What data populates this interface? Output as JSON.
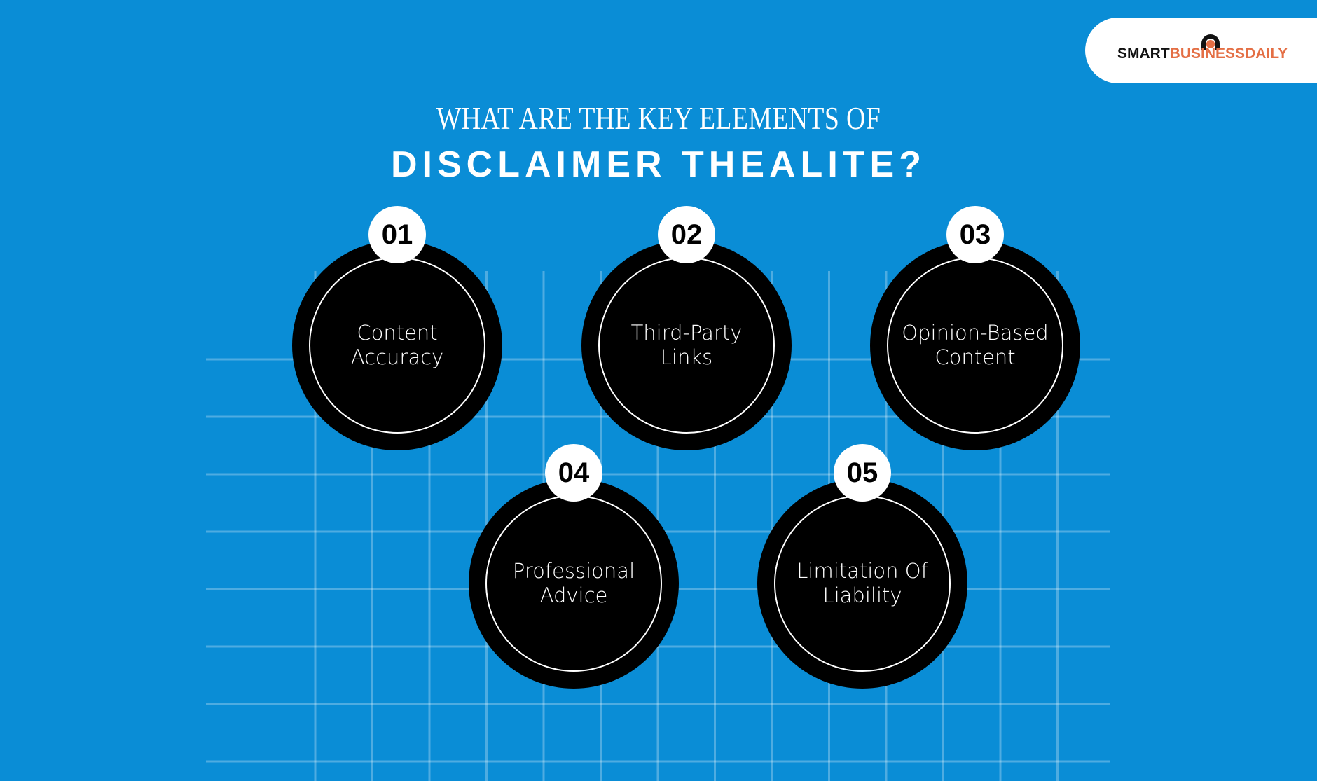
{
  "logo": {
    "part1": "SMART",
    "part2": "BUSINESSDAILY",
    "colors": {
      "dark": "#111111",
      "accent": "#e46f45"
    }
  },
  "title": {
    "line1": "WHAT ARE THE KEY ELEMENTS OF",
    "line2": "DISCLAIMER THEALITE?"
  },
  "background_color": "#0a8dd6",
  "items": [
    {
      "number": "01",
      "label": "Content Accuracy"
    },
    {
      "number": "02",
      "label": "Third-Party Links"
    },
    {
      "number": "03",
      "label": "Opinion-Based Content"
    },
    {
      "number": "04",
      "label": "Professional Advice"
    },
    {
      "number": "05",
      "label": "Limitation Of Liability"
    }
  ]
}
